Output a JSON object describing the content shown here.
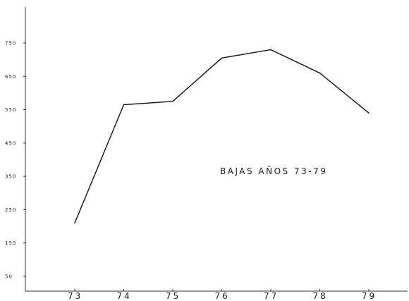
{
  "chart_data": {
    "type": "line",
    "title": "",
    "xlabel": "",
    "ylabel": "",
    "categories": [
      "73",
      "74",
      "75",
      "76",
      "77",
      "78",
      "79"
    ],
    "series": [
      {
        "values": [
          210,
          565,
          575,
          705,
          730,
          660,
          540
        ]
      }
    ],
    "ylim": [
      0,
      800
    ],
    "yticks": [
      50,
      150,
      250,
      350,
      450,
      550,
      650,
      750
    ],
    "ytick_labels": [
      "50",
      "150",
      "250",
      "350",
      "450",
      "550",
      "650",
      "750"
    ],
    "xtick_labels": [
      "73",
      "74",
      "75",
      "76",
      "77",
      "78",
      "79"
    ],
    "annotation": "BAJAS AÑOS 73-79",
    "grid": false,
    "line_color": "#111111"
  }
}
